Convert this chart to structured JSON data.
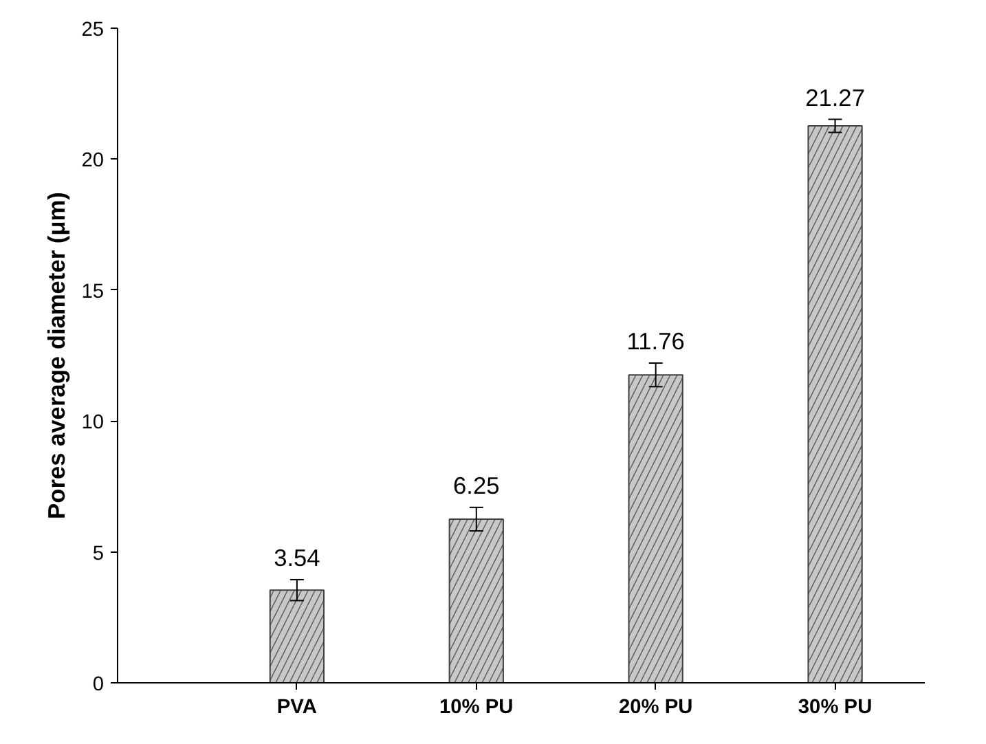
{
  "chart_data": {
    "type": "bar",
    "ylabel": "Pores average diameter (μm)",
    "categories": [
      "PVA",
      "10% PU",
      "20% PU",
      "30% PU"
    ],
    "values": [
      3.54,
      6.25,
      11.76,
      21.27
    ],
    "errors": [
      0.4,
      0.45,
      0.45,
      0.25
    ],
    "color": "#c8c8c8",
    "data_labels": true,
    "grid": false,
    "ylim": [
      0,
      25
    ],
    "yticks": [
      0,
      5,
      10,
      15,
      20,
      25
    ]
  }
}
